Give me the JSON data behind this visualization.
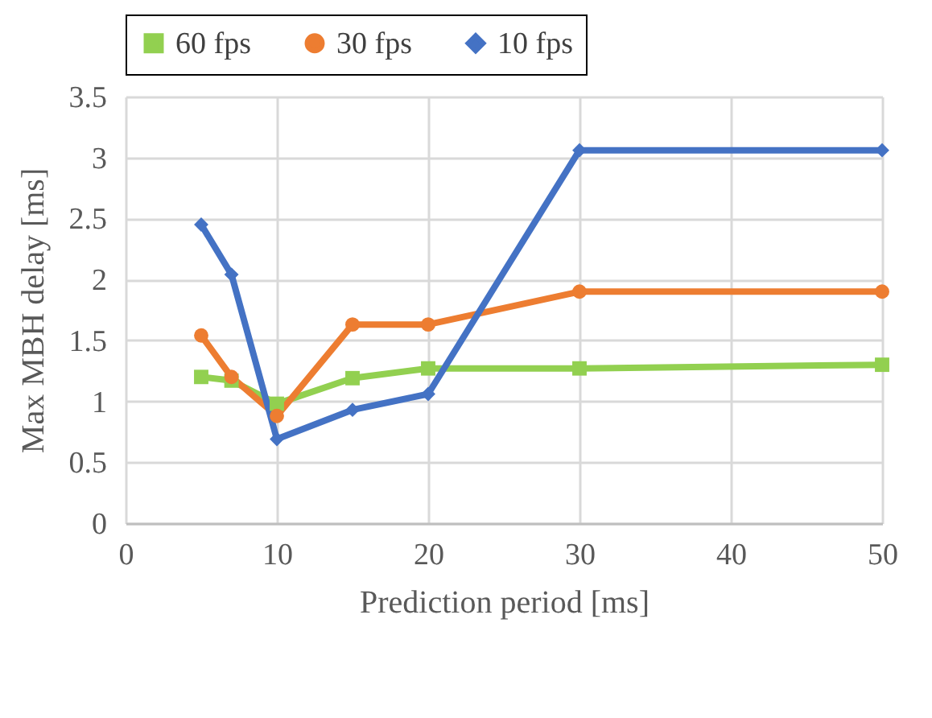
{
  "chart_data": {
    "type": "line",
    "xlabel": "Prediction period [ms]",
    "ylabel": "Max MBH delay [ms]",
    "xlim": [
      0,
      50
    ],
    "xticks": [
      0,
      10,
      20,
      30,
      40,
      50
    ],
    "ylim": [
      0,
      3.5
    ],
    "yticks": [
      0,
      0.5,
      1,
      1.5,
      2,
      2.5,
      3,
      3.5
    ],
    "x": [
      5,
      7,
      10,
      15,
      20,
      30,
      50
    ],
    "grid": true,
    "legend": "top",
    "line_style": "solid",
    "series": [
      {
        "name": "60 fps",
        "color": "#92d050",
        "marker": "square",
        "values": [
          1.2,
          1.17,
          0.98,
          1.19,
          1.27,
          1.27,
          1.3
        ]
      },
      {
        "name": "30 fps",
        "color": "#ed7d31",
        "marker": "circle",
        "values": [
          1.54,
          1.2,
          0.88,
          1.63,
          1.63,
          1.9,
          1.9
        ]
      },
      {
        "name": "10 fps",
        "color": "#4472c4",
        "marker": "diamond",
        "values": [
          2.45,
          2.04,
          0.69,
          0.93,
          1.06,
          3.06,
          3.06
        ]
      }
    ]
  }
}
